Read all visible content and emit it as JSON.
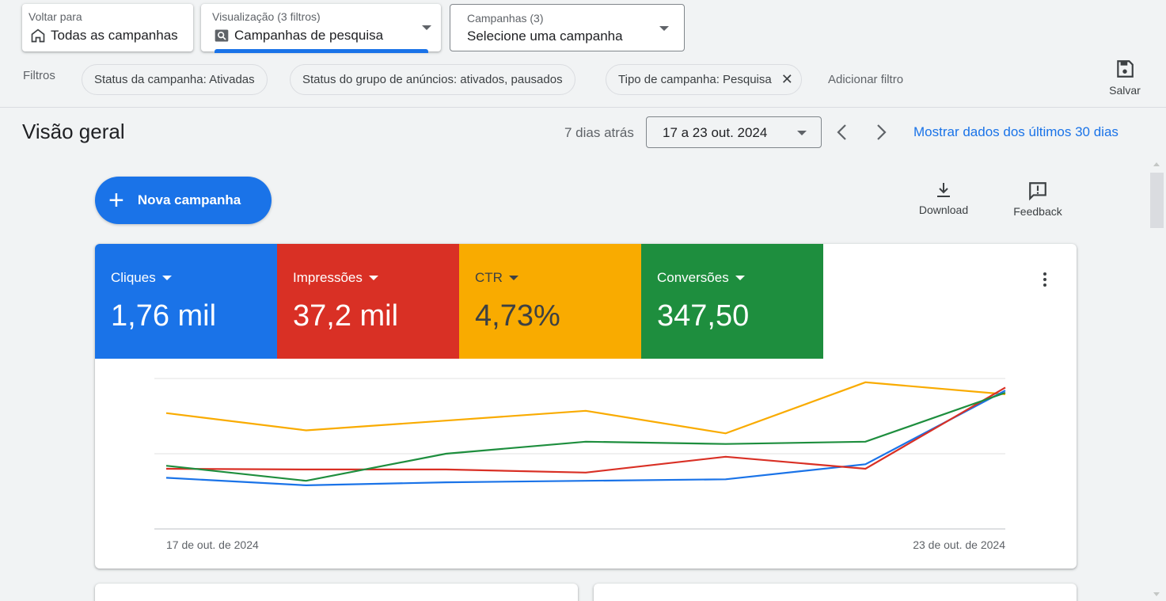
{
  "header": {
    "back": {
      "small": "Voltar para",
      "label": "Todas as campanhas",
      "icon": "home-icon"
    },
    "view": {
      "small": "Visualização (3 filtros)",
      "label": "Campanhas de pesquisa",
      "icon": "search-view-icon"
    },
    "campaigns": {
      "small": "Campanhas (3)",
      "label": "Selecione uma campanha"
    }
  },
  "filters": {
    "label": "Filtros",
    "chips": [
      {
        "label": "Status da campanha: Ativadas"
      },
      {
        "label": "Status do grupo de anúncios: ativados, pausados"
      },
      {
        "label": "Tipo de campanha: Pesquisa",
        "removable": true
      }
    ],
    "add_label": "Adicionar filtro",
    "save_label": "Salvar"
  },
  "overview": {
    "title": "Visão geral",
    "ago": "7 dias atrás",
    "date_range": "17 a 23 out. 2024",
    "show_30": "Mostrar dados dos últimos 30 dias"
  },
  "actions": {
    "new_campaign": "Nova campanha",
    "download": "Download",
    "feedback": "Feedback"
  },
  "metrics": [
    {
      "name": "Cliques",
      "value": "1,76 mil",
      "color": "#1a73e8"
    },
    {
      "name": "Impressões",
      "value": "37,2 mil",
      "color": "#d93025"
    },
    {
      "name": "CTR",
      "value": "4,73%",
      "color": "#f9ab00"
    },
    {
      "name": "Conversões",
      "value": "347,50",
      "color": "#1e8e3e"
    }
  ],
  "chart_data": {
    "type": "line",
    "x_start_label": "17 de out. de 2024",
    "x_end_label": "23 de out. de 2024",
    "normalized": true,
    "ylim": [
      0,
      1
    ],
    "grid": true,
    "series": [
      {
        "name": "Cliques",
        "color": "#1a73e8",
        "values": [
          0.34,
          0.29,
          0.31,
          0.32,
          0.33,
          0.43,
          0.92
        ]
      },
      {
        "name": "Impressões",
        "color": "#d93025",
        "values": [
          0.4,
          0.395,
          0.395,
          0.375,
          0.48,
          0.4,
          0.94
        ]
      },
      {
        "name": "CTR",
        "color": "#f9ab00",
        "values": [
          0.77,
          0.655,
          0.72,
          0.785,
          0.635,
          0.975,
          0.895
        ]
      },
      {
        "name": "Conversões",
        "color": "#1e8e3e",
        "values": [
          0.42,
          0.32,
          0.5,
          0.58,
          0.565,
          0.58,
          0.905
        ]
      }
    ]
  }
}
